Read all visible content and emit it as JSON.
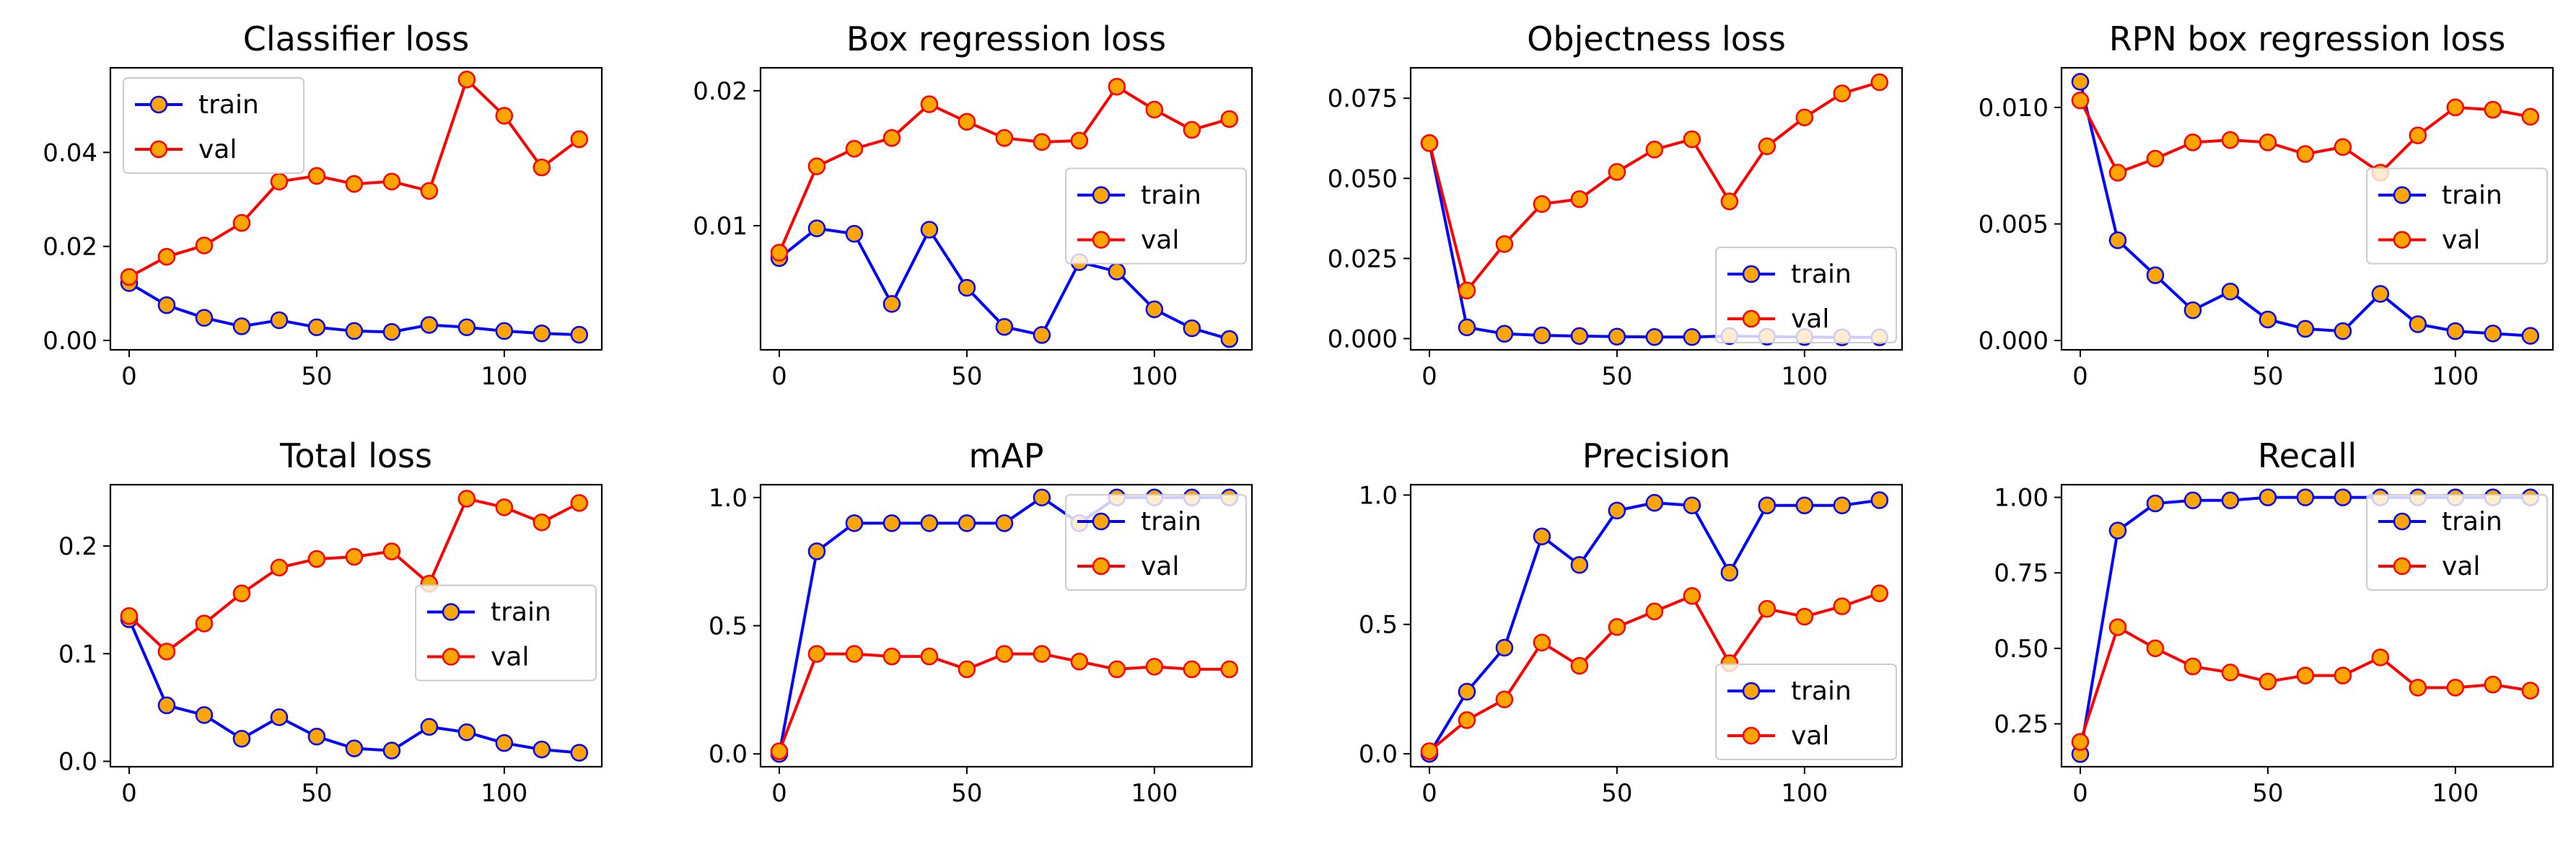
{
  "colors": {
    "train_line": "#0000ff",
    "val_line": "#ff0000",
    "marker_fill": "#ffa500",
    "train_marker_edge": "#0000ff",
    "val_marker_edge": "#ff0000"
  },
  "chart_data": [
    {
      "type": "line",
      "title": "Classifier loss",
      "xlabel": "",
      "ylabel": "",
      "x": [
        0,
        10,
        20,
        30,
        40,
        50,
        60,
        70,
        80,
        90,
        100,
        110,
        120
      ],
      "xlim": [
        -5,
        126
      ],
      "ylim": [
        -0.002,
        0.058
      ],
      "yticks": [
        0.0,
        0.02,
        0.04
      ],
      "ytick_labels": [
        "0.00",
        "0.02",
        "0.04"
      ],
      "xticks": [
        0,
        50,
        100
      ],
      "xtick_labels": [
        "0",
        "50",
        "100"
      ],
      "legend": {
        "position": "upper-left",
        "entries": [
          "train",
          "val"
        ]
      },
      "series": [
        {
          "name": "train",
          "values": [
            0.0122,
            0.0075,
            0.0048,
            0.003,
            0.0043,
            0.0028,
            0.002,
            0.0018,
            0.0033,
            0.0028,
            0.002,
            0.0015,
            0.0012
          ]
        },
        {
          "name": "val",
          "values": [
            0.0135,
            0.0178,
            0.0202,
            0.025,
            0.0338,
            0.035,
            0.0333,
            0.0338,
            0.0318,
            0.0555,
            0.0478,
            0.0368,
            0.0428
          ]
        }
      ]
    },
    {
      "type": "line",
      "title": "Box regression loss",
      "xlabel": "",
      "ylabel": "",
      "x": [
        0,
        10,
        20,
        30,
        40,
        50,
        60,
        70,
        80,
        90,
        100,
        110,
        120
      ],
      "xlim": [
        -5,
        126
      ],
      "ylim": [
        0.0008,
        0.0217
      ],
      "yticks": [
        0.01,
        0.02
      ],
      "ytick_labels": [
        "0.01",
        "0.02"
      ],
      "xticks": [
        0,
        50,
        100
      ],
      "xtick_labels": [
        "0",
        "50",
        "100"
      ],
      "legend": {
        "position": "center-right",
        "entries": [
          "train",
          "val"
        ]
      },
      "series": [
        {
          "name": "train",
          "values": [
            0.0076,
            0.0098,
            0.0094,
            0.0042,
            0.0097,
            0.0054,
            0.0025,
            0.0019,
            0.0073,
            0.0066,
            0.0038,
            0.0024,
            0.0016
          ]
        },
        {
          "name": "val",
          "values": [
            0.008,
            0.0144,
            0.0157,
            0.0165,
            0.019,
            0.0177,
            0.0165,
            0.0162,
            0.0163,
            0.0203,
            0.0186,
            0.0171,
            0.0179
          ]
        }
      ]
    },
    {
      "type": "line",
      "title": "Objectness loss",
      "xlabel": "",
      "ylabel": "",
      "x": [
        0,
        10,
        20,
        30,
        40,
        50,
        60,
        70,
        80,
        90,
        100,
        110,
        120
      ],
      "xlim": [
        -5,
        126
      ],
      "ylim": [
        -0.0035,
        0.0845
      ],
      "yticks": [
        0.0,
        0.025,
        0.05,
        0.075
      ],
      "ytick_labels": [
        "0.000",
        "0.025",
        "0.050",
        "0.075"
      ],
      "xticks": [
        0,
        50,
        100
      ],
      "xtick_labels": [
        "0",
        "50",
        "100"
      ],
      "legend": {
        "position": "lower-right",
        "entries": [
          "train",
          "val"
        ]
      },
      "series": [
        {
          "name": "train",
          "values": [
            0.061,
            0.0035,
            0.0015,
            0.001,
            0.0008,
            0.0006,
            0.0005,
            0.0005,
            0.0008,
            0.0006,
            0.0005,
            0.0004,
            0.0004
          ]
        },
        {
          "name": "val",
          "values": [
            0.061,
            0.015,
            0.0295,
            0.042,
            0.0435,
            0.052,
            0.059,
            0.0622,
            0.0428,
            0.06,
            0.069,
            0.0765,
            0.08
          ]
        }
      ]
    },
    {
      "type": "line",
      "title": "RPN box regression loss",
      "xlabel": "",
      "ylabel": "",
      "x": [
        0,
        10,
        20,
        30,
        40,
        50,
        60,
        70,
        80,
        90,
        100,
        110,
        120
      ],
      "xlim": [
        -5,
        126
      ],
      "ylim": [
        -0.0004,
        0.0117
      ],
      "yticks": [
        0.0,
        0.005,
        0.01
      ],
      "ytick_labels": [
        "0.000",
        "0.005",
        "0.010"
      ],
      "xticks": [
        0,
        50,
        100
      ],
      "xtick_labels": [
        "0",
        "50",
        "100"
      ],
      "legend": {
        "position": "center-right",
        "entries": [
          "train",
          "val"
        ]
      },
      "series": [
        {
          "name": "train",
          "values": [
            0.0111,
            0.0043,
            0.0028,
            0.0013,
            0.0021,
            0.0009,
            0.0005,
            0.0004,
            0.002,
            0.0007,
            0.0004,
            0.0003,
            0.0002
          ]
        },
        {
          "name": "val",
          "values": [
            0.0103,
            0.0072,
            0.0078,
            0.0085,
            0.0086,
            0.0085,
            0.008,
            0.0083,
            0.0072,
            0.0088,
            0.01,
            0.0099,
            0.0096
          ]
        }
      ]
    },
    {
      "type": "line",
      "title": "Total loss",
      "xlabel": "",
      "ylabel": "",
      "x": [
        0,
        10,
        20,
        30,
        40,
        50,
        60,
        70,
        80,
        90,
        100,
        110,
        120
      ],
      "xlim": [
        -5,
        126
      ],
      "ylim": [
        -0.005,
        0.257
      ],
      "yticks": [
        0.0,
        0.1,
        0.2
      ],
      "ytick_labels": [
        "0.0",
        "0.1",
        "0.2"
      ],
      "xticks": [
        0,
        50,
        100
      ],
      "xtick_labels": [
        "0",
        "50",
        "100"
      ],
      "legend": {
        "position": "center-right",
        "entries": [
          "train",
          "val"
        ]
      },
      "series": [
        {
          "name": "train",
          "values": [
            0.132,
            0.052,
            0.043,
            0.021,
            0.041,
            0.023,
            0.012,
            0.01,
            0.032,
            0.027,
            0.017,
            0.011,
            0.008
          ]
        },
        {
          "name": "val",
          "values": [
            0.135,
            0.102,
            0.128,
            0.156,
            0.18,
            0.188,
            0.19,
            0.195,
            0.165,
            0.244,
            0.236,
            0.222,
            0.24
          ]
        }
      ]
    },
    {
      "type": "line",
      "title": "mAP",
      "xlabel": "",
      "ylabel": "",
      "x": [
        0,
        10,
        20,
        30,
        40,
        50,
        60,
        70,
        80,
        90,
        100,
        110,
        120
      ],
      "xlim": [
        -5,
        126
      ],
      "ylim": [
        -0.05,
        1.05
      ],
      "yticks": [
        0.0,
        0.5,
        1.0
      ],
      "ytick_labels": [
        "0.0",
        "0.5",
        "1.0"
      ],
      "xticks": [
        0,
        50,
        100
      ],
      "xtick_labels": [
        "0",
        "50",
        "100"
      ],
      "legend": {
        "position": "upper-right",
        "entries": [
          "train",
          "val"
        ]
      },
      "series": [
        {
          "name": "train",
          "values": [
            0.0,
            0.79,
            0.9,
            0.9,
            0.9,
            0.9,
            0.9,
            1.0,
            0.9,
            1.0,
            1.0,
            1.0,
            1.0
          ]
        },
        {
          "name": "val",
          "values": [
            0.01,
            0.39,
            0.39,
            0.38,
            0.38,
            0.33,
            0.39,
            0.39,
            0.36,
            0.33,
            0.34,
            0.33,
            0.33
          ]
        }
      ]
    },
    {
      "type": "line",
      "title": "Precision",
      "xlabel": "",
      "ylabel": "",
      "x": [
        0,
        10,
        20,
        30,
        40,
        50,
        60,
        70,
        80,
        90,
        100,
        110,
        120
      ],
      "xlim": [
        -5,
        126
      ],
      "ylim": [
        -0.05,
        1.04
      ],
      "yticks": [
        0.0,
        0.5,
        1.0
      ],
      "ytick_labels": [
        "0.0",
        "0.5",
        "1.0"
      ],
      "xticks": [
        0,
        50,
        100
      ],
      "xtick_labels": [
        "0",
        "50",
        "100"
      ],
      "legend": {
        "position": "lower-right",
        "entries": [
          "train",
          "val"
        ]
      },
      "series": [
        {
          "name": "train",
          "values": [
            0.0,
            0.24,
            0.41,
            0.84,
            0.73,
            0.94,
            0.97,
            0.96,
            0.7,
            0.96,
            0.96,
            0.96,
            0.98
          ]
        },
        {
          "name": "val",
          "values": [
            0.01,
            0.13,
            0.21,
            0.43,
            0.34,
            0.49,
            0.55,
            0.61,
            0.35,
            0.56,
            0.53,
            0.57,
            0.62
          ]
        }
      ]
    },
    {
      "type": "line",
      "title": "Recall",
      "xlabel": "",
      "ylabel": "",
      "x": [
        0,
        10,
        20,
        30,
        40,
        50,
        60,
        70,
        80,
        90,
        100,
        110,
        120
      ],
      "xlim": [
        -5,
        126
      ],
      "ylim": [
        0.108,
        1.042
      ],
      "yticks": [
        0.25,
        0.5,
        0.75,
        1.0
      ],
      "ytick_labels": [
        "0.25",
        "0.50",
        "0.75",
        "1.00"
      ],
      "xticks": [
        0,
        50,
        100
      ],
      "xtick_labels": [
        "0",
        "50",
        "100"
      ],
      "legend": {
        "position": "upper-right",
        "entries": [
          "train",
          "val"
        ]
      },
      "series": [
        {
          "name": "train",
          "values": [
            0.15,
            0.89,
            0.98,
            0.99,
            0.99,
            1.0,
            1.0,
            1.0,
            1.0,
            1.0,
            1.0,
            1.0,
            1.0
          ]
        },
        {
          "name": "val",
          "values": [
            0.19,
            0.57,
            0.5,
            0.44,
            0.42,
            0.39,
            0.41,
            0.41,
            0.47,
            0.37,
            0.37,
            0.38,
            0.36
          ]
        }
      ]
    }
  ]
}
